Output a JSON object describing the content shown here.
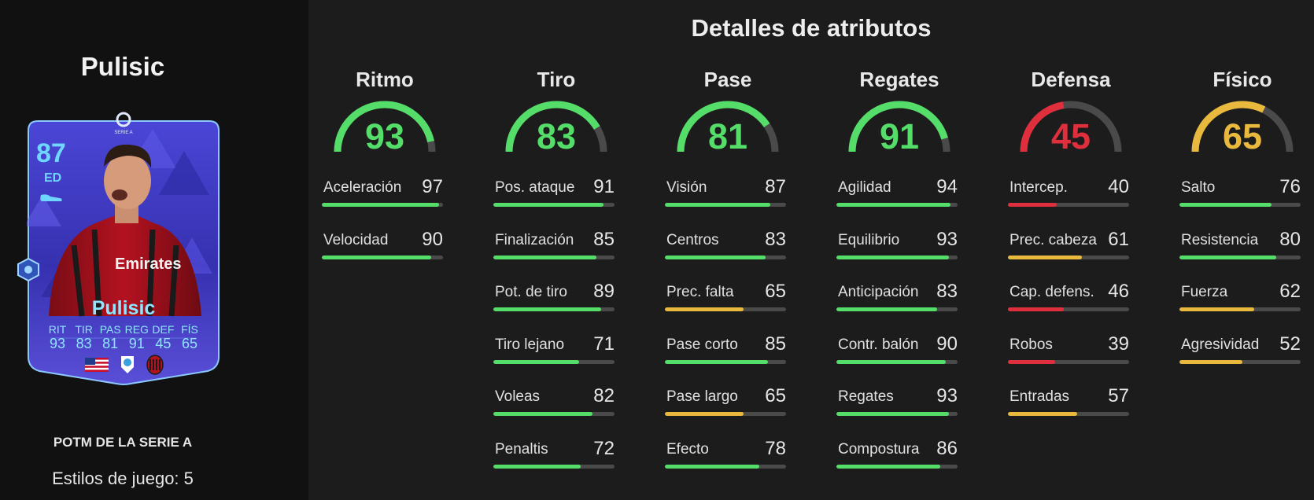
{
  "player": {
    "name": "Pulisic",
    "card_name": "Pulisic",
    "rating": "87",
    "position": "ED",
    "card_type": "POTM DE LA SERIE A",
    "playstyles": "Estilos de juego: 5",
    "league_badge": "SERIE A",
    "card_stats": [
      {
        "label": "RIT",
        "value": "93"
      },
      {
        "label": "TIR",
        "value": "83"
      },
      {
        "label": "PAS",
        "value": "81"
      },
      {
        "label": "REG",
        "value": "91"
      },
      {
        "label": "DEF",
        "value": "45"
      },
      {
        "label": "FÍS",
        "value": "65"
      }
    ]
  },
  "title": "Detalles de atributos",
  "colors": {
    "high": "#55dd6a",
    "mid": "#e8b93c",
    "low": "#e02f3c",
    "track": "#4a4a4a",
    "card_blue": "#3b37b8",
    "card_glow": "#6fd7ff"
  },
  "groups": [
    {
      "name": "Ritmo",
      "value": 93,
      "tier": "high",
      "stats": [
        {
          "label": "Aceleración",
          "value": 97,
          "tier": "high"
        },
        {
          "label": "Velocidad",
          "value": 90,
          "tier": "high"
        }
      ]
    },
    {
      "name": "Tiro",
      "value": 83,
      "tier": "high",
      "stats": [
        {
          "label": "Pos. ataque",
          "value": 91,
          "tier": "high"
        },
        {
          "label": "Finalización",
          "value": 85,
          "tier": "high"
        },
        {
          "label": "Pot. de tiro",
          "value": 89,
          "tier": "high"
        },
        {
          "label": "Tiro lejano",
          "value": 71,
          "tier": "high"
        },
        {
          "label": "Voleas",
          "value": 82,
          "tier": "high"
        },
        {
          "label": "Penaltis",
          "value": 72,
          "tier": "high"
        }
      ]
    },
    {
      "name": "Pase",
      "value": 81,
      "tier": "high",
      "stats": [
        {
          "label": "Visión",
          "value": 87,
          "tier": "high"
        },
        {
          "label": "Centros",
          "value": 83,
          "tier": "high"
        },
        {
          "label": "Prec. falta",
          "value": 65,
          "tier": "mid"
        },
        {
          "label": "Pase corto",
          "value": 85,
          "tier": "high"
        },
        {
          "label": "Pase largo",
          "value": 65,
          "tier": "mid"
        },
        {
          "label": "Efecto",
          "value": 78,
          "tier": "high"
        }
      ]
    },
    {
      "name": "Regates",
      "value": 91,
      "tier": "high",
      "stats": [
        {
          "label": "Agilidad",
          "value": 94,
          "tier": "high"
        },
        {
          "label": "Equilibrio",
          "value": 93,
          "tier": "high"
        },
        {
          "label": "Anticipación",
          "value": 83,
          "tier": "high"
        },
        {
          "label": "Contr. balón",
          "value": 90,
          "tier": "high"
        },
        {
          "label": "Regates",
          "value": 93,
          "tier": "high"
        },
        {
          "label": "Compostura",
          "value": 86,
          "tier": "high"
        }
      ]
    },
    {
      "name": "Defensa",
      "value": 45,
      "tier": "low",
      "stats": [
        {
          "label": "Intercep.",
          "value": 40,
          "tier": "low"
        },
        {
          "label": "Prec. cabeza",
          "value": 61,
          "tier": "mid"
        },
        {
          "label": "Cap. defens.",
          "value": 46,
          "tier": "low"
        },
        {
          "label": "Robos",
          "value": 39,
          "tier": "low"
        },
        {
          "label": "Entradas",
          "value": 57,
          "tier": "mid"
        }
      ]
    },
    {
      "name": "Físico",
      "value": 65,
      "tier": "mid",
      "stats": [
        {
          "label": "Salto",
          "value": 76,
          "tier": "high"
        },
        {
          "label": "Resistencia",
          "value": 80,
          "tier": "high"
        },
        {
          "label": "Fuerza",
          "value": 62,
          "tier": "mid"
        },
        {
          "label": "Agresividad",
          "value": 52,
          "tier": "mid"
        }
      ]
    }
  ]
}
